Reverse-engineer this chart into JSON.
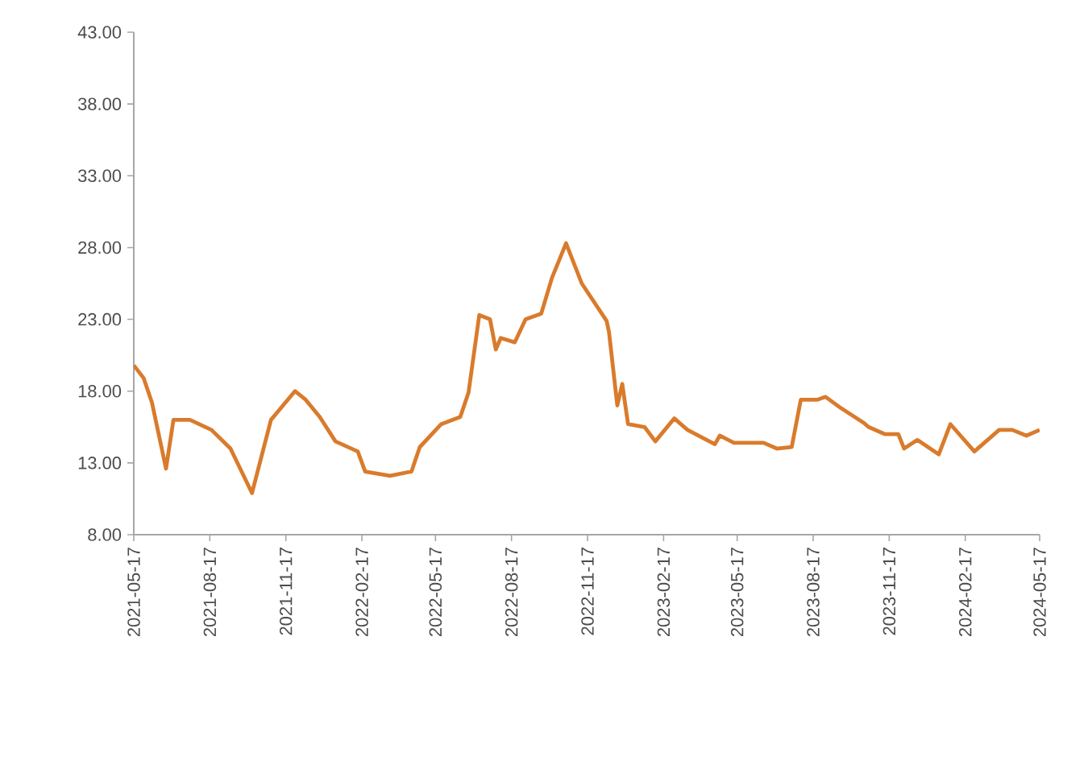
{
  "chart_data": {
    "type": "line",
    "color": "#d97b2c",
    "x": [
      "2021-05-17",
      "2021-05-29",
      "2021-06-08",
      "2021-06-25",
      "2021-07-04",
      "2021-07-24",
      "2021-08-19",
      "2021-09-11",
      "2021-10-07",
      "2021-10-30",
      "2021-11-28",
      "2021-12-11",
      "2021-12-28",
      "2022-01-16",
      "2022-02-12",
      "2022-02-21",
      "2022-03-23",
      "2022-04-18",
      "2022-04-28",
      "2022-05-24",
      "2022-06-16",
      "2022-06-26",
      "2022-07-09",
      "2022-07-22",
      "2022-07-29",
      "2022-08-04",
      "2022-08-21",
      "2022-09-03",
      "2022-09-22",
      "2022-10-05",
      "2022-10-22",
      "2022-11-10",
      "2022-12-10",
      "2022-12-13",
      "2022-12-23",
      "2022-12-29",
      "2023-01-05",
      "2023-01-25",
      "2023-02-07",
      "2023-03-02",
      "2023-03-18",
      "2023-04-20",
      "2023-04-26",
      "2023-05-13",
      "2023-06-18",
      "2023-07-04",
      "2023-07-22",
      "2023-08-02",
      "2023-08-22",
      "2023-09-01",
      "2023-09-20",
      "2023-10-17",
      "2023-10-23",
      "2023-11-12",
      "2023-11-28",
      "2023-12-05",
      "2023-12-21",
      "2024-01-16",
      "2024-01-30",
      "2024-02-28",
      "2024-03-29",
      "2024-04-14",
      "2024-05-01",
      "2024-05-17"
    ],
    "values": [
      19.8,
      18.9,
      17.2,
      12.6,
      16.0,
      16.0,
      15.3,
      14.0,
      10.9,
      16.0,
      18.0,
      17.4,
      16.2,
      14.5,
      13.8,
      12.4,
      12.1,
      12.4,
      14.1,
      15.7,
      16.2,
      17.9,
      23.3,
      23.0,
      20.9,
      21.7,
      21.4,
      23.0,
      23.4,
      25.9,
      28.3,
      25.5,
      22.9,
      22.1,
      17.0,
      18.5,
      15.7,
      15.5,
      14.5,
      16.1,
      15.3,
      14.3,
      14.9,
      14.4,
      14.4,
      14.0,
      14.1,
      17.4,
      17.4,
      17.6,
      16.8,
      15.8,
      15.5,
      15.0,
      15.0,
      14.0,
      14.6,
      13.6,
      15.7,
      13.8,
      15.3,
      15.3,
      14.9,
      15.3
    ],
    "xlim": [
      "2021-05-17",
      "2024-05-17"
    ],
    "xticks": [
      "2021-05-17",
      "2021-08-17",
      "2021-11-17",
      "2022-02-17",
      "2022-05-17",
      "2022-08-17",
      "2022-11-17",
      "2023-02-17",
      "2023-05-17",
      "2023-08-17",
      "2023-11-17",
      "2024-02-17",
      "2024-05-17"
    ],
    "ylim": [
      8,
      43
    ],
    "yticks": [
      {
        "value": 8,
        "label": "8.00"
      },
      {
        "value": 13,
        "label": "13.00"
      },
      {
        "value": 18,
        "label": "18.00"
      },
      {
        "value": 23,
        "label": "23.00"
      },
      {
        "value": 28,
        "label": "28.00"
      },
      {
        "value": 33,
        "label": "33.00"
      },
      {
        "value": 38,
        "label": "38.00"
      },
      {
        "value": 43,
        "label": "43.00"
      }
    ]
  }
}
